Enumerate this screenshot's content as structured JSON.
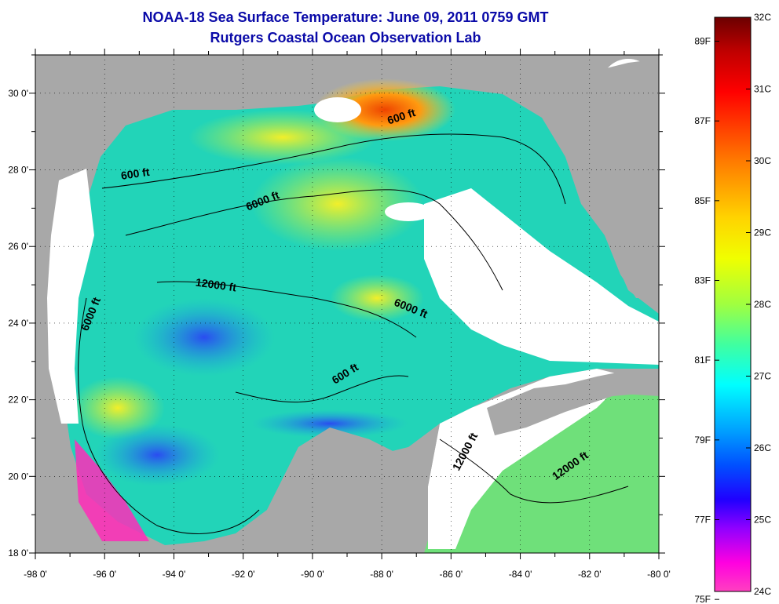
{
  "header": {
    "title": "NOAA-18 Sea Surface Temperature:  June 09, 2011 0759 GMT",
    "subtitle": "Rutgers Coastal Ocean Observation Lab"
  },
  "map": {
    "lon_range": [
      -98,
      -80
    ],
    "lat_range": [
      18,
      31
    ],
    "lon_ticks": [
      "-98 0'",
      "-96 0'",
      "-94 0'",
      "-92 0'",
      "-90 0'",
      "-88 0'",
      "-86 0'",
      "-84 0'",
      "-82 0'",
      "-80 0'"
    ],
    "lat_ticks": [
      "18 0'",
      "20 0'",
      "22 0'",
      "24 0'",
      "26 0'",
      "28 0'",
      "30 0'"
    ],
    "contour_labels": [
      {
        "text": "600 ft",
        "lon": -87.4,
        "lat": 29.3,
        "angle": -18
      },
      {
        "text": "600 ft",
        "lon": -95.1,
        "lat": 27.8,
        "angle": -8
      },
      {
        "text": "6000 ft",
        "lon": -91.4,
        "lat": 27.1,
        "angle": -22
      },
      {
        "text": "12000 ft",
        "lon": -92.8,
        "lat": 24.9,
        "angle": 8
      },
      {
        "text": "6000 ft",
        "lon": -87.2,
        "lat": 24.3,
        "angle": 22
      },
      {
        "text": "6000 ft",
        "lon": -96.3,
        "lat": 24.2,
        "angle": -68
      },
      {
        "text": "600 ft",
        "lon": -89.0,
        "lat": 22.6,
        "angle": -32
      },
      {
        "text": "12000 ft",
        "lon": -85.5,
        "lat": 20.6,
        "angle": -62
      },
      {
        "text": "12000 ft",
        "lon": -82.5,
        "lat": 20.2,
        "angle": -35
      }
    ],
    "colors": {
      "land": "#a8a8a8",
      "cloud": "#ffffff",
      "warm": "#ee4400",
      "ocean": "#22d4b8"
    }
  },
  "colorbar": {
    "celsius_labels": [
      "32C",
      "31C",
      "30C",
      "29C",
      "28C",
      "27C",
      "26C",
      "25C",
      "24C"
    ],
    "fahrenheit_labels": [
      "89F",
      "87F",
      "85F",
      "83F",
      "81F",
      "79F",
      "77F",
      "75F"
    ],
    "fahrenheit_values": [
      89,
      87,
      85,
      83,
      81,
      79,
      77,
      75
    ]
  }
}
